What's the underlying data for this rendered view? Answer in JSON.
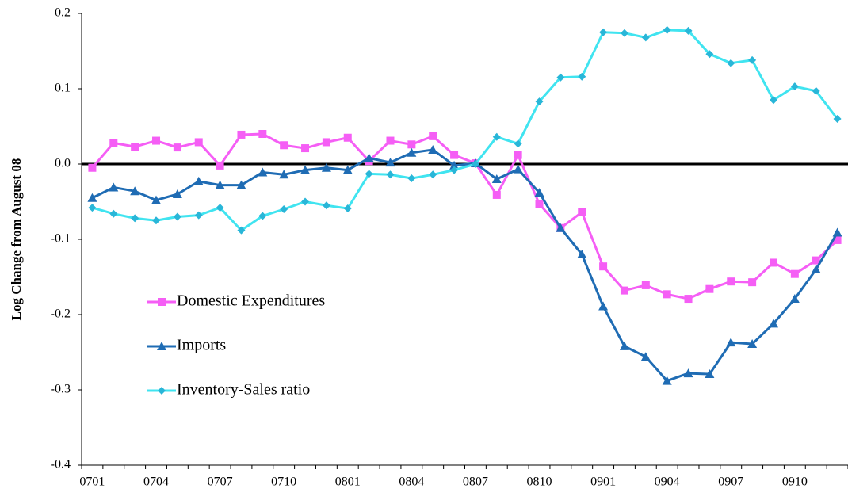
{
  "chart_data": {
    "type": "line",
    "y_label": "Log Change from August 08",
    "categories": [
      "0701",
      null,
      null,
      "0704",
      null,
      null,
      "0707",
      null,
      null,
      "0710",
      null,
      null,
      "0801",
      null,
      null,
      "0804",
      null,
      null,
      "0807",
      null,
      null,
      "0810",
      null,
      null,
      "0901",
      null,
      null,
      "0904",
      null,
      null,
      "0907",
      null,
      null,
      "0910",
      null,
      null
    ],
    "series": [
      {
        "name": "Domestic Expenditures",
        "color": "#f55ef5",
        "marker": "square",
        "values": [
          -0.005,
          0.028,
          0.023,
          0.031,
          0.022,
          0.029,
          -0.002,
          0.039,
          0.04,
          0.025,
          0.021,
          0.029,
          0.035,
          0.004,
          0.031,
          0.026,
          0.037,
          0.012,
          0.001,
          -0.041,
          0.012,
          -0.053,
          -0.085,
          -0.064,
          -0.136,
          -0.168,
          -0.161,
          -0.173,
          -0.179,
          -0.166,
          -0.156,
          -0.157,
          -0.131,
          -0.146,
          -0.128,
          -0.101
        ]
      },
      {
        "name": "Imports",
        "color": "#1f6cb4",
        "marker": "triangle",
        "values": [
          -0.045,
          -0.031,
          -0.036,
          -0.048,
          -0.04,
          -0.023,
          -0.028,
          -0.028,
          -0.011,
          -0.014,
          -0.008,
          -0.005,
          -0.008,
          0.008,
          0.002,
          0.015,
          0.019,
          -0.002,
          0.001,
          -0.02,
          -0.007,
          -0.038,
          -0.085,
          -0.12,
          -0.189,
          -0.242,
          -0.256,
          -0.288,
          -0.278,
          -0.279,
          -0.237,
          -0.239,
          -0.212,
          -0.179,
          -0.14,
          -0.091
        ]
      },
      {
        "name": "Inventory-Sales ratio",
        "color": "#40e4f0",
        "marker_color": "#29b6d8",
        "marker": "diamond",
        "values": [
          -0.058,
          -0.066,
          -0.072,
          -0.075,
          -0.07,
          -0.068,
          -0.058,
          -0.088,
          -0.069,
          -0.06,
          -0.05,
          -0.055,
          -0.059,
          -0.013,
          -0.014,
          -0.019,
          -0.014,
          -0.008,
          0,
          0.036,
          0.027,
          0.083,
          0.115,
          0.116,
          0.175,
          0.174,
          0.168,
          0.178,
          0.177,
          0.146,
          0.134,
          0.138,
          0.085,
          0.103,
          0.097,
          0.06
        ]
      }
    ],
    "ylim": [
      -0.4,
      0.2
    ],
    "yticks": [
      0.2,
      0.1,
      {
        "value": 0,
        "label": "0.0"
      },
      -0.1,
      -0.2,
      -0.3,
      -0.4
    ],
    "zero_line": true,
    "legend": "inside-lower-left"
  }
}
